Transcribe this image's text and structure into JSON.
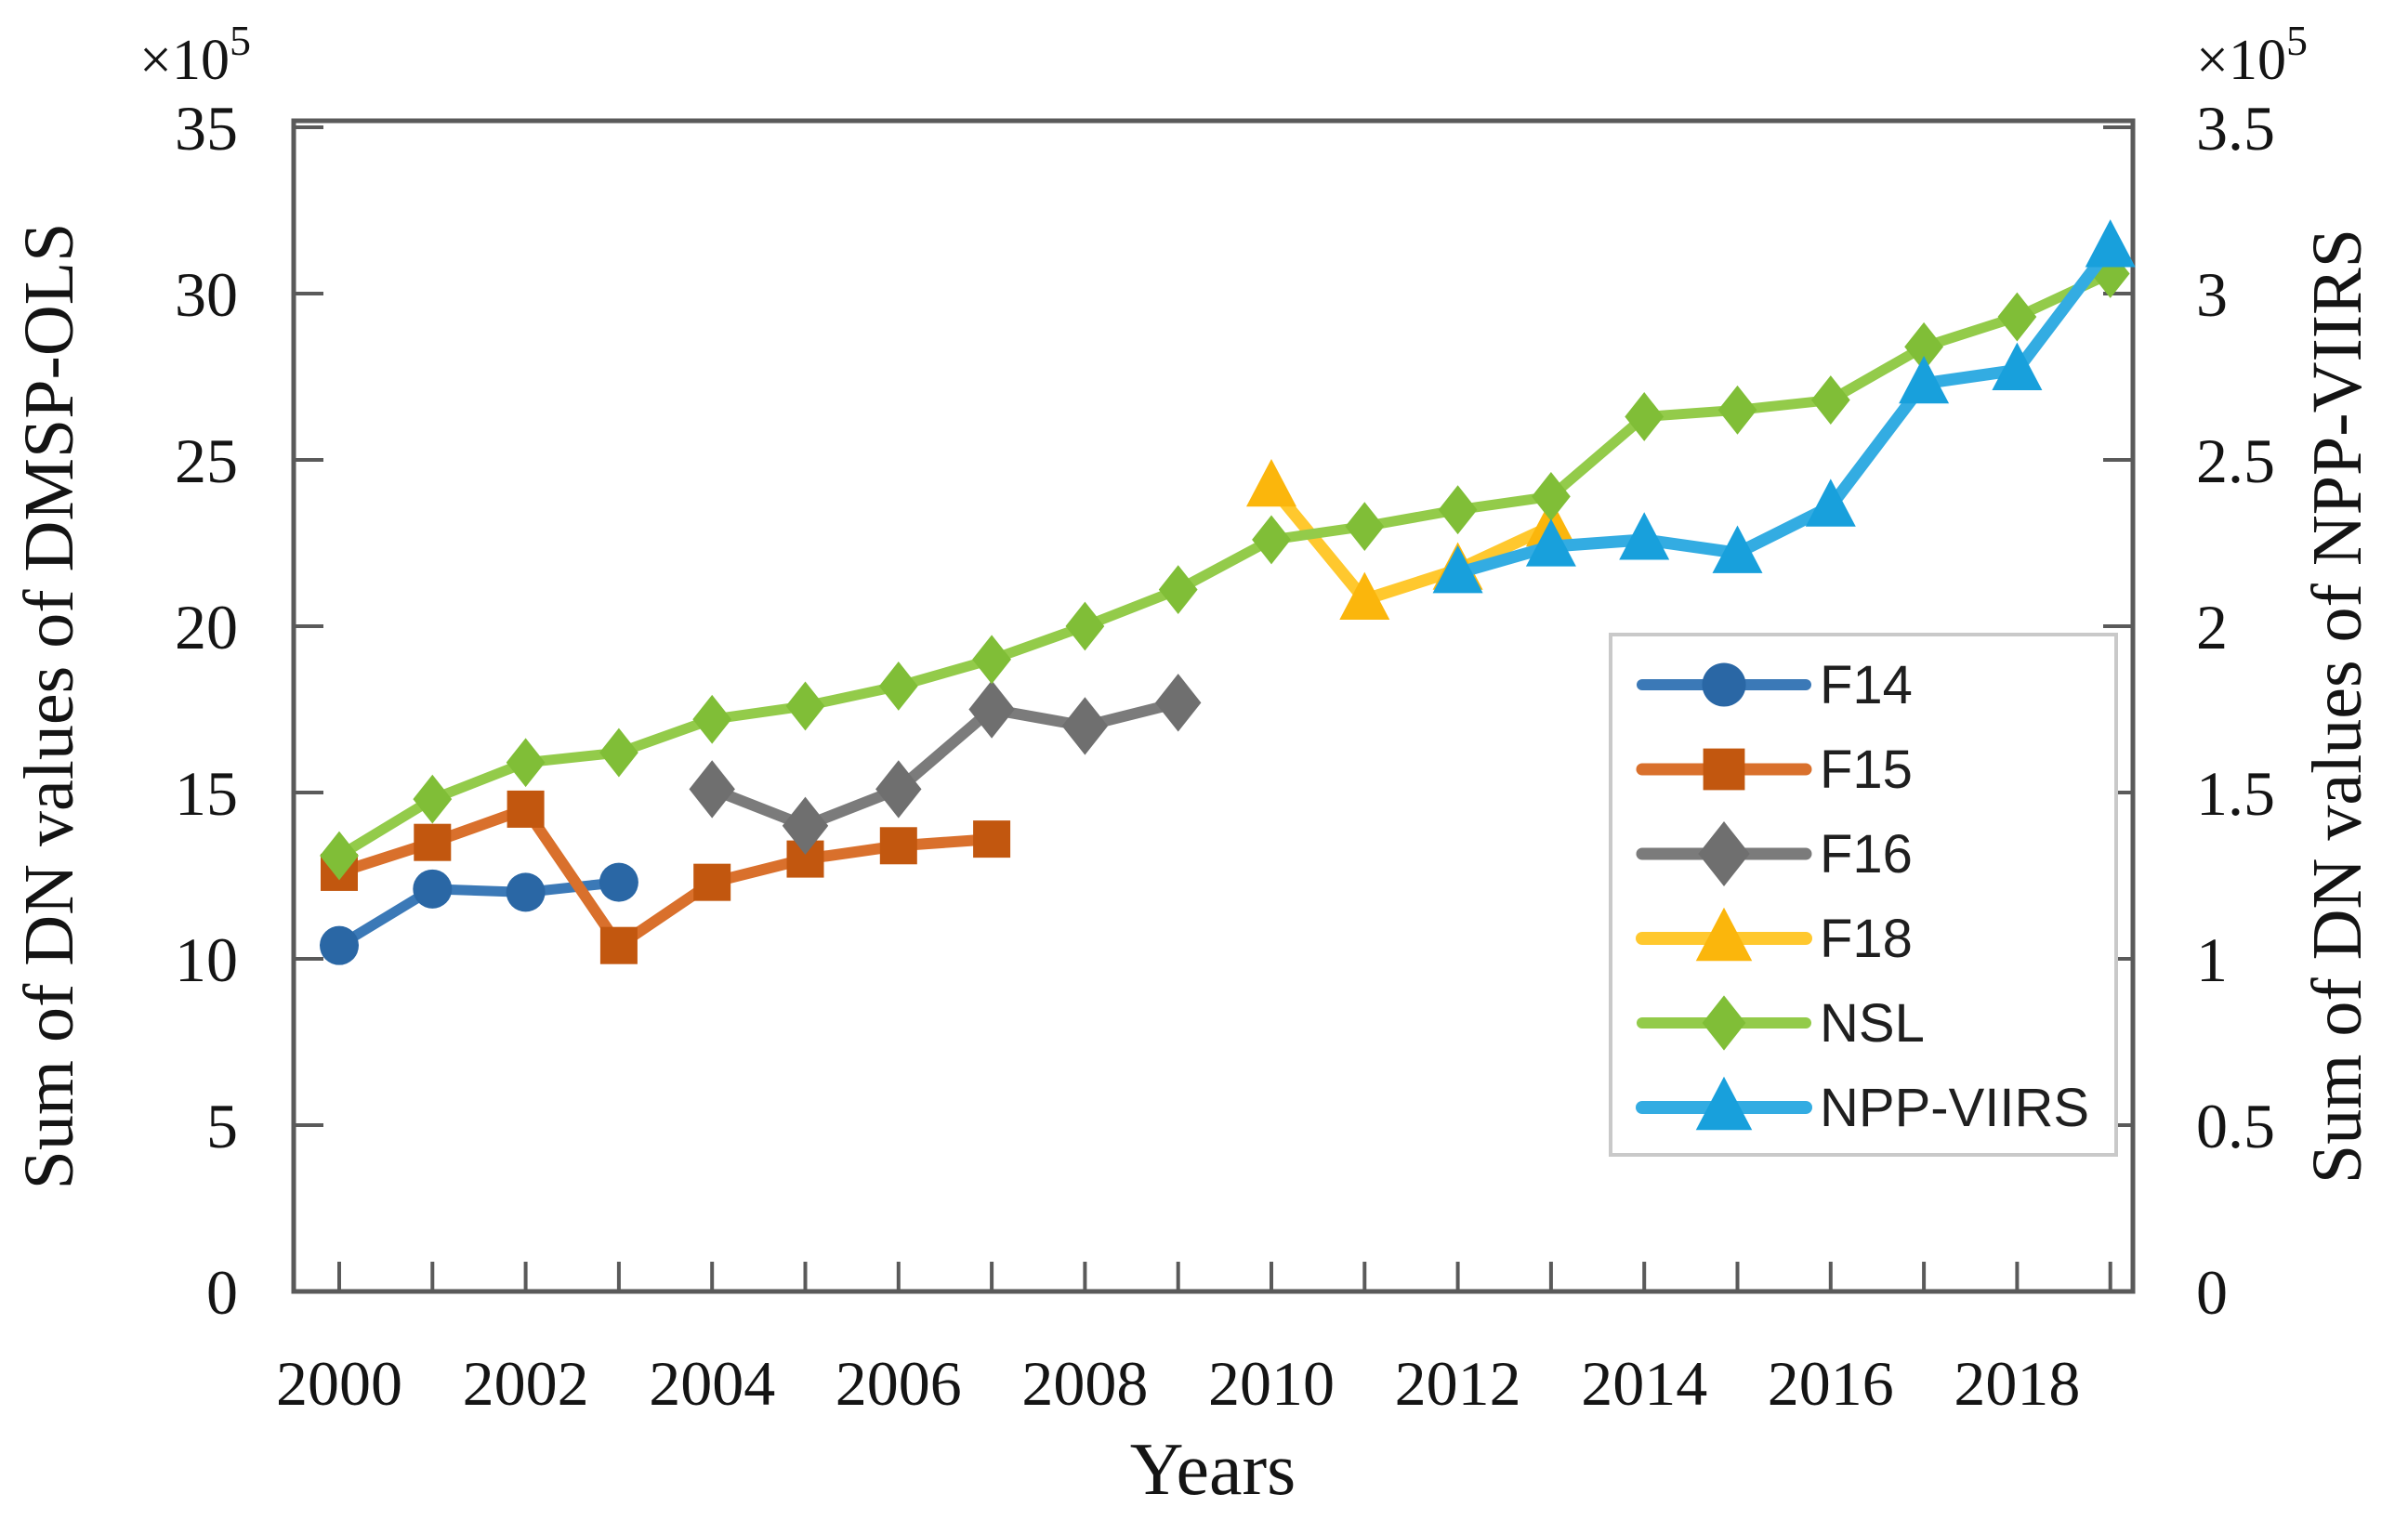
{
  "figure": {
    "left_axis": {
      "exponent_base": "×10",
      "exponent_sup": "5",
      "title": "Sum of DN values of DMSP-OLS",
      "tick_values": [
        0,
        5,
        10,
        15,
        20,
        25,
        30,
        35
      ],
      "tick_labels": [
        "0",
        "5",
        "10",
        "15",
        "20",
        "25",
        "30",
        "35"
      ],
      "range": [
        0,
        35
      ]
    },
    "right_axis": {
      "exponent_base": "×10",
      "exponent_sup": "5",
      "title": "Sum of DN values of NPP-VIIRS",
      "tick_values": [
        0,
        0.5,
        1,
        1.5,
        2,
        2.5,
        3,
        3.5
      ],
      "tick_labels": [
        "0",
        "0.5",
        "1",
        "1.5",
        "2",
        "2.5",
        "3",
        "3.5"
      ],
      "range": [
        0,
        3.5
      ]
    },
    "x_axis": {
      "title": "Years",
      "first_tick_year": 2000,
      "last_tick_year": 2019,
      "label_years": [
        2000,
        2002,
        2004,
        2006,
        2008,
        2010,
        2012,
        2014,
        2016,
        2018
      ],
      "label_texts": [
        "2000",
        "2002",
        "2004",
        "2006",
        "2008",
        "2010",
        "2012",
        "2014",
        "2016",
        "2018"
      ]
    }
  },
  "legend": {
    "items": [
      {
        "label": "F14"
      },
      {
        "label": "F15"
      },
      {
        "label": "F16"
      },
      {
        "label": "F18"
      },
      {
        "label": "NSL"
      },
      {
        "label": "NPP-VIIRS"
      }
    ],
    "border_color": "#c9c9c9"
  },
  "chart_data": {
    "type": "line",
    "title": "",
    "xlabel": "Years",
    "ylabel_left": "Sum of DN values of DMSP-OLS",
    "ylabel_right": "Sum of DN values of NPP-VIIRS",
    "x_range": [
      1999.5,
      2019.3
    ],
    "ylim_left": [
      0,
      3500000
    ],
    "ylim_right": [
      0,
      350000
    ],
    "grid": false,
    "legend_position": "inside-right",
    "unit_note": "values in axis units of 1e5",
    "series": [
      {
        "name": "F14",
        "axis": "left",
        "marker": "circle",
        "line_color": "#3B79B7",
        "marker_color": "#2A67A5",
        "x": [
          2000,
          2001,
          2002,
          2003
        ],
        "y": [
          10.4,
          12.1,
          12.0,
          12.3
        ]
      },
      {
        "name": "F15",
        "axis": "left",
        "marker": "square",
        "line_color": "#D9702C",
        "marker_color": "#C2570F",
        "x": [
          2000,
          2001,
          2002,
          2003,
          2004,
          2005,
          2006,
          2007
        ],
        "y": [
          12.6,
          13.5,
          14.5,
          10.4,
          12.3,
          13.0,
          13.4,
          13.6
        ]
      },
      {
        "name": "F16",
        "axis": "left",
        "marker": "diamond",
        "line_color": "#7B7B7B",
        "marker_color": "#6F6F6F",
        "x": [
          2004,
          2005,
          2006,
          2007,
          2008,
          2009
        ],
        "y": [
          15.1,
          14.0,
          15.1,
          17.5,
          17.0,
          17.7
        ]
      },
      {
        "name": "F18",
        "axis": "left",
        "marker": "triangle",
        "line_color": "#FFC82E",
        "marker_color": "#FBB60C",
        "x": [
          2010,
          2011,
          2012,
          2013
        ],
        "y": [
          24.2,
          20.8,
          21.7,
          23.0
        ]
      },
      {
        "name": "NSL",
        "axis": "left",
        "marker": "diamond",
        "line_color": "#93CB4A",
        "marker_color": "#80BE37",
        "x": [
          2000,
          2001,
          2002,
          2003,
          2004,
          2005,
          2006,
          2007,
          2008,
          2009,
          2010,
          2011,
          2012,
          2013,
          2014,
          2015,
          2016,
          2017,
          2018,
          2019
        ],
        "y": [
          13.1,
          14.8,
          15.9,
          16.2,
          17.2,
          17.6,
          18.2,
          19.0,
          20.0,
          21.1,
          22.6,
          23.0,
          23.5,
          23.9,
          26.3,
          26.5,
          26.8,
          28.4,
          29.3,
          30.6
        ]
      },
      {
        "name": "NPP-VIIRS",
        "axis": "right",
        "marker": "triangle",
        "line_color": "#33ACE2",
        "marker_color": "#18A0DC",
        "x": [
          2012,
          2013,
          2014,
          2015,
          2016,
          2017,
          2018,
          2019
        ],
        "y": [
          2.16,
          2.24,
          2.26,
          2.22,
          2.36,
          2.73,
          2.77,
          3.14
        ]
      }
    ]
  }
}
